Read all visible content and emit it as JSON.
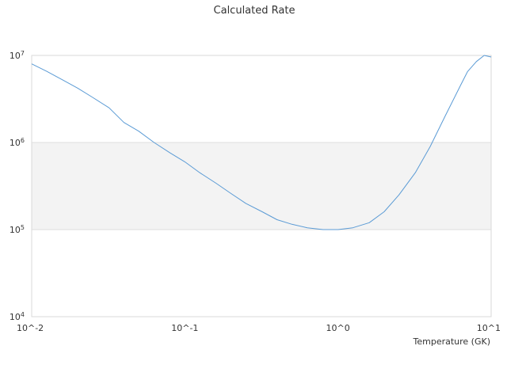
{
  "chart_data": {
    "type": "line",
    "title": "Calculated Rate",
    "xlabel": "Temperature (GK)",
    "ylabel": "",
    "x_scale": "log",
    "y_scale": "log",
    "xlim": [
      0.01,
      10
    ],
    "ylim": [
      10000,
      10000000
    ],
    "x_tick_labels": [
      {
        "value": 0.01,
        "label": "10^-2"
      },
      {
        "value": 0.1,
        "label": "10^-1"
      },
      {
        "value": 1,
        "label": "10^0"
      },
      {
        "value": 10,
        "label": "10^1"
      }
    ],
    "y_tick_labels": [
      {
        "value": 10000,
        "base": "10",
        "exp": "4"
      },
      {
        "value": 100000,
        "base": "10",
        "exp": "5"
      },
      {
        "value": 1000000,
        "base": "10",
        "exp": "6"
      },
      {
        "value": 10000000,
        "base": "10",
        "exp": "7"
      }
    ],
    "alternate_band": [
      100000,
      1000000
    ],
    "grid": false,
    "legend": "none",
    "series": [
      {
        "color": "#5b9bd5",
        "x": [
          0.01,
          0.0125,
          0.016,
          0.02,
          0.025,
          0.032,
          0.04,
          0.05,
          0.063,
          0.08,
          0.1,
          0.125,
          0.16,
          0.2,
          0.25,
          0.32,
          0.4,
          0.5,
          0.63,
          0.8,
          1.0,
          1.25,
          1.6,
          2.0,
          2.5,
          3.2,
          4.0,
          5.0,
          6.3,
          7.0,
          8.0,
          9.0,
          10.0
        ],
        "y": [
          8000000,
          6600000,
          5200000,
          4200000,
          3300000,
          2500000,
          1700000,
          1350000,
          1000000,
          760000,
          600000,
          450000,
          340000,
          260000,
          200000,
          160000,
          130000,
          115000,
          105000,
          100000,
          100000,
          105000,
          120000,
          160000,
          250000,
          450000,
          900000,
          2000000,
          4500000,
          6500000,
          8500000,
          10000000,
          9600000
        ]
      }
    ]
  }
}
